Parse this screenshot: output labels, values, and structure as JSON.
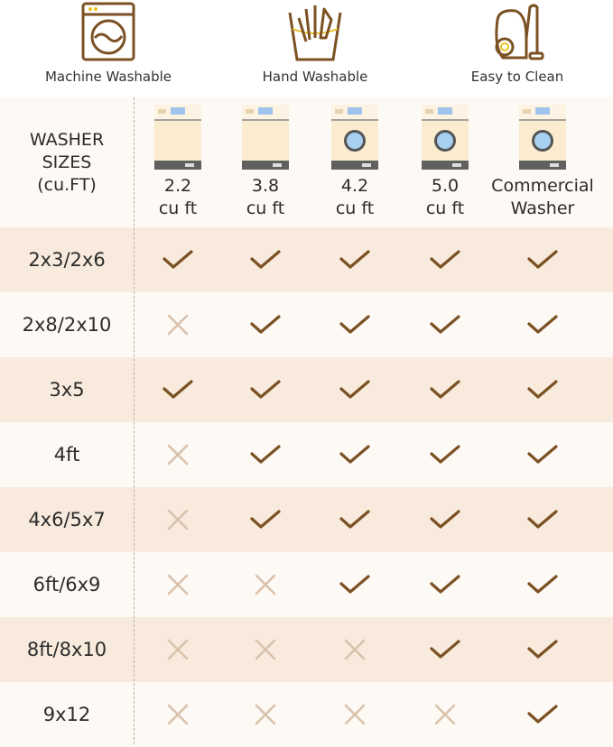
{
  "features": [
    {
      "label": "Machine Washable",
      "icon": "washing-machine-icon"
    },
    {
      "label": "Hand Washable",
      "icon": "hand-wash-icon"
    },
    {
      "label": "Easy to Clean",
      "icon": "vacuum-cleaner-icon"
    }
  ],
  "header_label": [
    "WASHER",
    "SIZES",
    "(cu.FT)"
  ],
  "columns": [
    {
      "line1": "2.2",
      "line2": "cu ft",
      "icon": "top-load-washer-icon"
    },
    {
      "line1": "3.8",
      "line2": "cu ft",
      "icon": "top-load-washer-icon"
    },
    {
      "line1": "4.2",
      "line2": "cu ft",
      "icon": "front-load-washer-icon"
    },
    {
      "line1": "5.0",
      "line2": "cu ft",
      "icon": "front-load-washer-icon"
    },
    {
      "line1": "Commercial",
      "line2": "Washer",
      "icon": "front-load-washer-icon"
    }
  ],
  "rows": [
    {
      "size": "2x3/2x6",
      "fits": [
        true,
        true,
        true,
        true,
        true
      ]
    },
    {
      "size": "2x8/2x10",
      "fits": [
        false,
        true,
        true,
        true,
        true
      ]
    },
    {
      "size": "3x5",
      "fits": [
        true,
        true,
        true,
        true,
        true
      ]
    },
    {
      "size": "4ft",
      "fits": [
        false,
        true,
        true,
        true,
        true
      ]
    },
    {
      "size": "4x6/5x7",
      "fits": [
        false,
        true,
        true,
        true,
        true
      ]
    },
    {
      "size": "6ft/6x9",
      "fits": [
        false,
        false,
        true,
        true,
        true
      ]
    },
    {
      "size": "8ft/8x10",
      "fits": [
        false,
        false,
        false,
        true,
        true
      ]
    },
    {
      "size": "9x12",
      "fits": [
        false,
        false,
        false,
        false,
        true
      ]
    }
  ],
  "colors": {
    "check": "#7b5124",
    "cross": "#d8c2ac",
    "icon_brown": "#7b5124",
    "accent_yellow": "#f0c020",
    "band_dark": "#f8ebdd",
    "band_light": "#fdf9f4"
  }
}
